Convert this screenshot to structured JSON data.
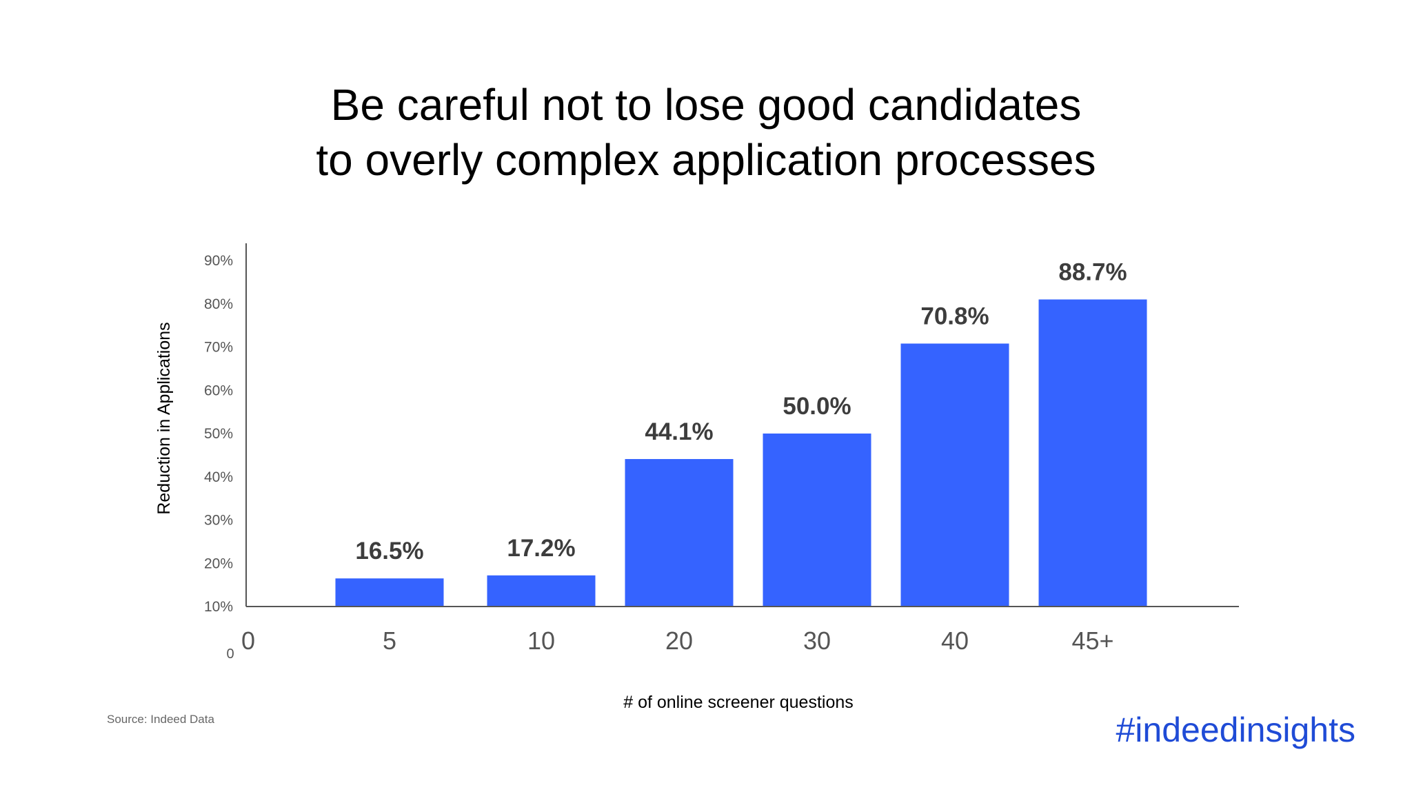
{
  "chart_data": {
    "type": "bar",
    "title_lines": [
      "Be careful not to lose good candidates",
      "to overly complex application processes"
    ],
    "xlabel": "# of online screener questions",
    "ylabel": "Reduction in Applications",
    "x_zero_label": "0",
    "y_zero_label": "0",
    "categories": [
      "5",
      "10",
      "20",
      "30",
      "40",
      "45+"
    ],
    "values": [
      16.5,
      17.2,
      44.1,
      50.0,
      70.8,
      88.7
    ],
    "value_labels": [
      "16.5%",
      "17.2%",
      "44.1%",
      "50.0%",
      "70.8%",
      "88.7%"
    ],
    "y_ticks": [
      "10%",
      "20%",
      "30%",
      "40%",
      "50%",
      "60%",
      "70%",
      "80%",
      "90%"
    ],
    "ylim": [
      10,
      90
    ],
    "bar_color": "#3563ff",
    "grid": false,
    "legend": "none"
  },
  "footer": {
    "source": "Source: Indeed Data",
    "hashtag": "#indeedinsights"
  },
  "colors": {
    "hashtag": "#1f4bd6",
    "axis": "#444444",
    "value_label": "#3d3d3d"
  }
}
